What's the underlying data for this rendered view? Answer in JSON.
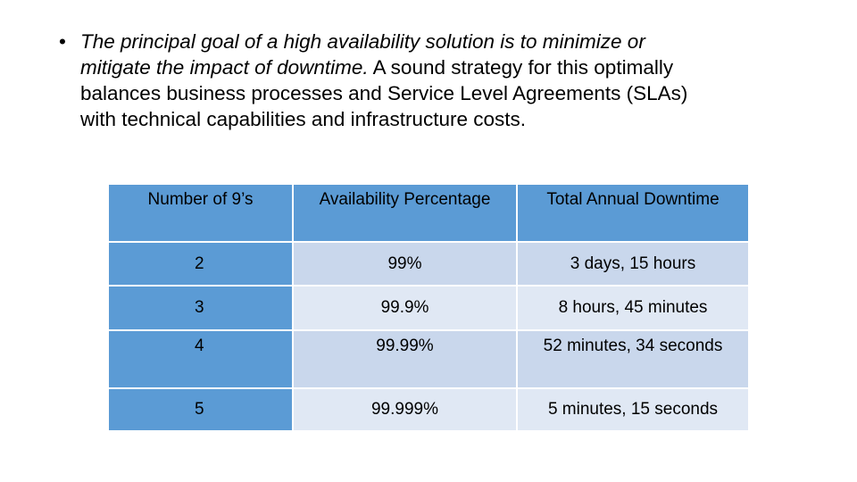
{
  "bullet": {
    "italic_text": "The principal goal of a high availability solution is to minimize or mitigate the impact of downtime.",
    "regular_text": " A sound strategy for this optimally balances business processes and Service Level Agreements (SLAs) with technical capabilities and infrastructure costs.",
    "lines": [
      {
        "italic": "The principal goal of a high availability solution is to minimize or",
        "regular": ""
      },
      {
        "italic": "mitigate the impact of downtime.",
        "regular": " A sound strategy for this optimally"
      },
      {
        "italic": "",
        "regular": "balances business processes and Service Level Agreements (SLAs)"
      },
      {
        "italic": "",
        "regular": "with technical capabilities and infrastructure costs."
      }
    ]
  },
  "table": {
    "headers": [
      "Number of 9’s",
      "Availability Percentage",
      "Total Annual Downtime"
    ],
    "rows": [
      [
        "2",
        "99%",
        "3 days, 15 hours"
      ],
      [
        "3",
        "99.9%",
        "8 hours, 45 minutes"
      ],
      [
        "4",
        "99.99%",
        "52 minutes, 34 seconds"
      ],
      [
        "5",
        "99.999%",
        "5 minutes, 15 seconds"
      ]
    ]
  },
  "colors": {
    "header_bg": "#5b9bd5",
    "row_light": "#e0e8f4",
    "row_mid": "#c9d7ec"
  }
}
